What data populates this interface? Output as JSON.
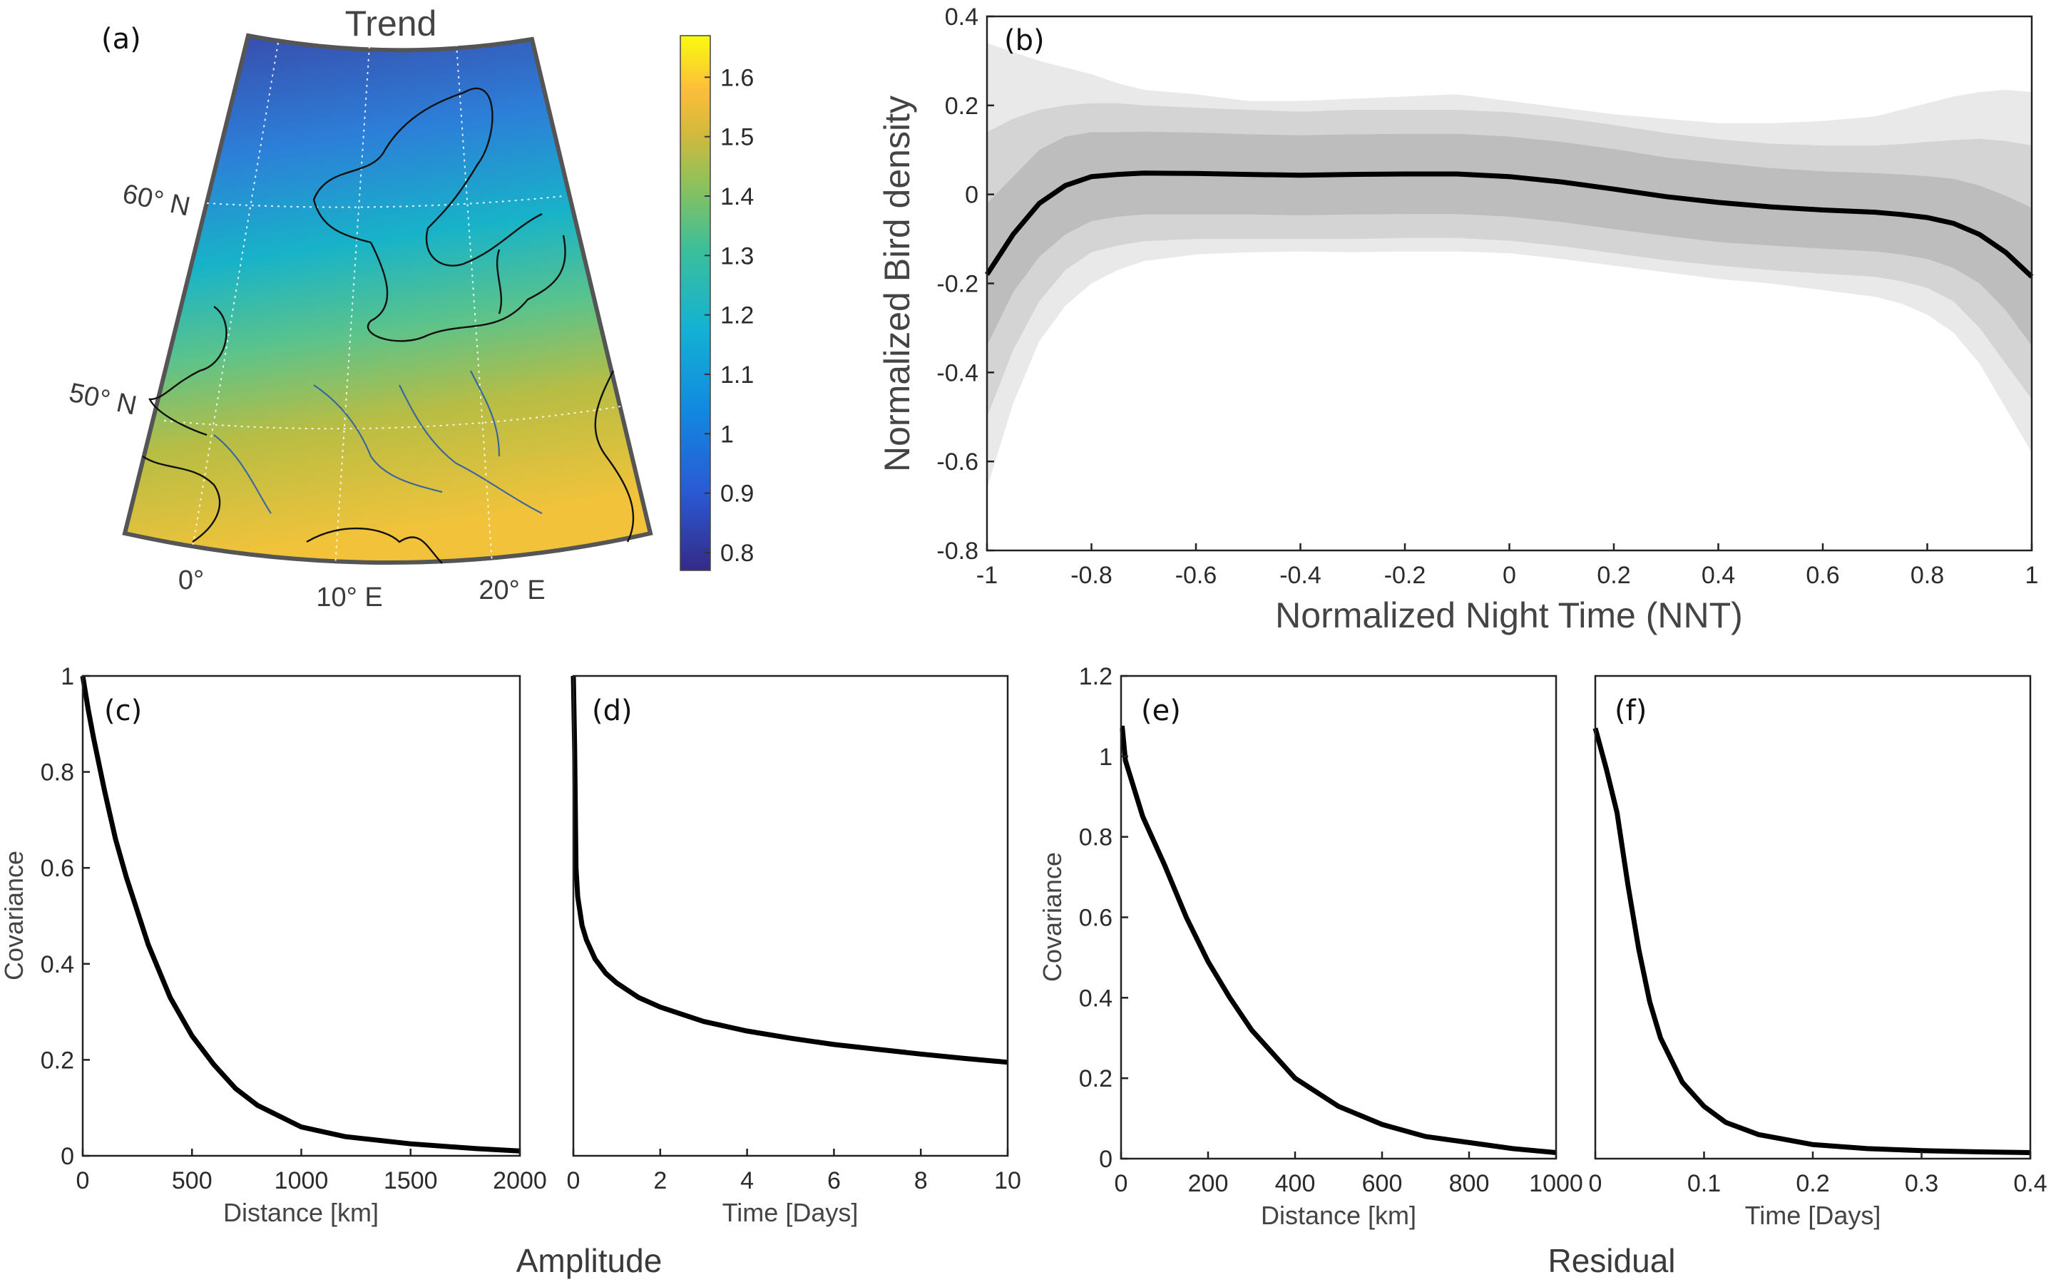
{
  "figure": {
    "group_labels": {
      "amplitude": "Amplitude",
      "residual": "Residual"
    }
  },
  "colors": {
    "curve": "#000000",
    "band_inner": "#bdbdbd",
    "band_mid": "#d4d4d4",
    "band_outer": "#e9e9e9",
    "colormap": "parula"
  },
  "panel_a": {
    "label": "(a)",
    "title": "Trend",
    "lat_labels": [
      "60° N",
      "50° N"
    ],
    "lon_labels": [
      "0°",
      "10° E",
      "20° E"
    ],
    "colorbar": {
      "min": 0.77,
      "max": 1.67,
      "ticks": [
        0.8,
        0.9,
        1,
        1.1,
        1.2,
        1.3,
        1.4,
        1.5,
        1.6
      ]
    }
  },
  "panel_b": {
    "label": "(b)",
    "xlabel": "Normalized Night Time (NNT)",
    "ylabel": "Normalized Bird density",
    "xlim": [
      -1,
      1
    ],
    "ylim": [
      -0.8,
      0.4
    ],
    "xticks": [
      -1,
      -0.8,
      -0.6,
      -0.4,
      -0.2,
      0,
      0.2,
      0.4,
      0.6,
      0.8,
      1
    ],
    "yticks": [
      -0.8,
      -0.6,
      -0.4,
      -0.2,
      0,
      0.2,
      0.4
    ]
  },
  "panel_c": {
    "label": "(c)",
    "xlabel": "Distance [km]",
    "ylabel": "Covariance",
    "xlim": [
      0,
      2000
    ],
    "ylim": [
      0,
      1
    ],
    "xticks": [
      0,
      500,
      1000,
      1500,
      2000
    ],
    "yticks": [
      0,
      0.2,
      0.4,
      0.6,
      0.8,
      1
    ]
  },
  "panel_d": {
    "label": "(d)",
    "xlabel": "Time [Days]",
    "ylabel": "",
    "xlim": [
      0,
      10
    ],
    "ylim": [
      0,
      1
    ],
    "xticks": [
      0,
      2,
      4,
      6,
      8,
      10
    ],
    "yticks": []
  },
  "panel_e": {
    "label": "(e)",
    "xlabel": "Distance [km]",
    "ylabel": "Covariance",
    "xlim": [
      0,
      1000
    ],
    "ylim": [
      0,
      1.2
    ],
    "xticks": [
      0,
      200,
      400,
      600,
      800,
      1000
    ],
    "yticks": [
      0,
      0.2,
      0.4,
      0.6,
      0.8,
      1,
      1.2
    ]
  },
  "panel_f": {
    "label": "(f)",
    "xlabel": "Time [Days]",
    "ylabel": "",
    "xlim": [
      0,
      0.4
    ],
    "ylim": [
      0,
      1.2
    ],
    "xticks": [
      0,
      0.1,
      0.2,
      0.3,
      0.4
    ],
    "yticks": []
  },
  "chart_data": [
    {
      "id": "b",
      "type": "line",
      "x": [
        -1,
        -0.95,
        -0.9,
        -0.85,
        -0.8,
        -0.75,
        -0.7,
        -0.6,
        -0.5,
        -0.4,
        -0.3,
        -0.2,
        -0.1,
        0,
        0.1,
        0.2,
        0.3,
        0.4,
        0.5,
        0.6,
        0.7,
        0.75,
        0.8,
        0.85,
        0.9,
        0.95,
        1
      ],
      "series": [
        {
          "name": "",
          "values": [
            -0.18,
            -0.09,
            -0.02,
            0.02,
            0.04,
            0.045,
            0.048,
            0.047,
            0.045,
            0.043,
            0.045,
            0.046,
            0.046,
            0.04,
            0.028,
            0.012,
            -0.005,
            -0.018,
            -0.028,
            -0.035,
            -0.04,
            -0.045,
            -0.052,
            -0.065,
            -0.09,
            -0.13,
            -0.185
          ]
        }
      ],
      "bands": [
        {
          "lower": [
            -0.34,
            -0.22,
            -0.14,
            -0.09,
            -0.06,
            -0.05,
            -0.045,
            -0.045,
            -0.045,
            -0.047,
            -0.045,
            -0.044,
            -0.044,
            -0.05,
            -0.062,
            -0.078,
            -0.093,
            -0.107,
            -0.115,
            -0.122,
            -0.128,
            -0.135,
            -0.145,
            -0.165,
            -0.2,
            -0.26,
            -0.34
          ],
          "upper": [
            -0.02,
            0.04,
            0.1,
            0.13,
            0.14,
            0.14,
            0.141,
            0.139,
            0.135,
            0.133,
            0.135,
            0.136,
            0.136,
            0.13,
            0.118,
            0.102,
            0.083,
            0.071,
            0.059,
            0.052,
            0.048,
            0.045,
            0.041,
            0.035,
            0.02,
            -0.003,
            -0.03
          ]
        },
        {
          "lower": [
            -0.5,
            -0.35,
            -0.24,
            -0.17,
            -0.13,
            -0.115,
            -0.105,
            -0.1,
            -0.1,
            -0.1,
            -0.1,
            -0.098,
            -0.098,
            -0.104,
            -0.116,
            -0.132,
            -0.148,
            -0.16,
            -0.17,
            -0.178,
            -0.185,
            -0.195,
            -0.21,
            -0.24,
            -0.3,
            -0.38,
            -0.46
          ],
          "upper": [
            0.14,
            0.17,
            0.19,
            0.2,
            0.205,
            0.205,
            0.2,
            0.195,
            0.19,
            0.186,
            0.19,
            0.19,
            0.19,
            0.185,
            0.172,
            0.156,
            0.138,
            0.124,
            0.114,
            0.11,
            0.11,
            0.113,
            0.118,
            0.122,
            0.125,
            0.12,
            0.11
          ]
        },
        {
          "lower": [
            -0.66,
            -0.47,
            -0.33,
            -0.25,
            -0.2,
            -0.17,
            -0.15,
            -0.135,
            -0.13,
            -0.128,
            -0.13,
            -0.128,
            -0.128,
            -0.132,
            -0.145,
            -0.16,
            -0.175,
            -0.19,
            -0.2,
            -0.215,
            -0.23,
            -0.245,
            -0.27,
            -0.31,
            -0.38,
            -0.48,
            -0.58
          ],
          "upper": [
            0.34,
            0.32,
            0.3,
            0.285,
            0.27,
            0.25,
            0.235,
            0.225,
            0.21,
            0.21,
            0.215,
            0.22,
            0.225,
            0.21,
            0.195,
            0.18,
            0.17,
            0.16,
            0.16,
            0.165,
            0.175,
            0.19,
            0.205,
            0.22,
            0.23,
            0.235,
            0.23
          ]
        }
      ]
    },
    {
      "id": "c",
      "type": "line",
      "x": [
        0,
        25,
        50,
        100,
        150,
        200,
        300,
        400,
        500,
        600,
        700,
        800,
        1000,
        1200,
        1500,
        1800,
        2000
      ],
      "series": [
        {
          "name": "",
          "values": [
            1,
            0.93,
            0.87,
            0.76,
            0.66,
            0.58,
            0.44,
            0.33,
            0.25,
            0.19,
            0.14,
            0.105,
            0.06,
            0.04,
            0.025,
            0.015,
            0.01
          ]
        }
      ]
    },
    {
      "id": "d",
      "type": "line",
      "x": [
        0,
        0.03,
        0.06,
        0.1,
        0.2,
        0.3,
        0.5,
        0.75,
        1,
        1.5,
        2,
        3,
        4,
        5,
        6,
        7,
        8,
        9,
        10
      ],
      "series": [
        {
          "name": "",
          "values": [
            1,
            0.85,
            0.6,
            0.54,
            0.48,
            0.45,
            0.41,
            0.38,
            0.36,
            0.33,
            0.31,
            0.28,
            0.26,
            0.245,
            0.232,
            0.222,
            0.212,
            0.203,
            0.195
          ]
        }
      ]
    },
    {
      "id": "e",
      "type": "line",
      "x": [
        0,
        3,
        10,
        50,
        100,
        150,
        200,
        250,
        300,
        400,
        500,
        600,
        700,
        800,
        900,
        1000
      ],
      "series": [
        {
          "name": "",
          "values": [
            1.07,
            1.07,
            0.99,
            0.85,
            0.73,
            0.6,
            0.49,
            0.4,
            0.32,
            0.2,
            0.13,
            0.085,
            0.055,
            0.04,
            0.025,
            0.015
          ]
        }
      ]
    },
    {
      "id": "f",
      "type": "line",
      "x": [
        0,
        0.01,
        0.02,
        0.03,
        0.04,
        0.05,
        0.06,
        0.08,
        0.1,
        0.12,
        0.15,
        0.2,
        0.25,
        0.3,
        0.35,
        0.4
      ],
      "series": [
        {
          "name": "",
          "values": [
            1.07,
            0.97,
            0.86,
            0.68,
            0.52,
            0.39,
            0.3,
            0.19,
            0.13,
            0.09,
            0.06,
            0.035,
            0.025,
            0.02,
            0.017,
            0.015
          ]
        }
      ]
    }
  ]
}
